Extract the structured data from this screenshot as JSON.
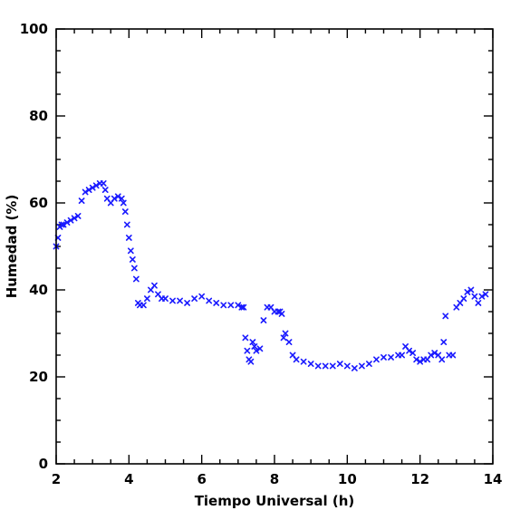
{
  "chart_data": {
    "type": "scatter",
    "title": "",
    "xlabel": "Tiempo Universal (h)",
    "ylabel": "Humedad (%)",
    "xlim": [
      2,
      14
    ],
    "ylim": [
      0,
      100
    ],
    "xticks": [
      2,
      4,
      6,
      8,
      10,
      12,
      14
    ],
    "yticks": [
      0,
      20,
      40,
      60,
      80,
      100
    ],
    "xtick_labels": [
      "2",
      "4",
      "6",
      "8",
      "10",
      "12",
      "14"
    ],
    "ytick_labels": [
      "0",
      "20",
      "40",
      "60",
      "80",
      "100"
    ],
    "minor_x_step": 0.5,
    "minor_y_step": 5,
    "grid": false,
    "marker": "x",
    "color": "#1a1aff",
    "series": [
      {
        "x": [
          2.0,
          2.05,
          2.1,
          2.15,
          2.2,
          2.3,
          2.4,
          2.5,
          2.6,
          2.7,
          2.8,
          2.9,
          3.0,
          3.1,
          3.2,
          3.3,
          3.35,
          3.4,
          3.5,
          3.6,
          3.7,
          3.8,
          3.85,
          3.9,
          3.95,
          4.0,
          4.05,
          4.1,
          4.15,
          4.2,
          4.25,
          4.3,
          4.4,
          4.5,
          4.6,
          4.7,
          4.8,
          4.9,
          5.0,
          5.2,
          5.4,
          5.6,
          5.8,
          6.0,
          6.2,
          6.4,
          6.6,
          6.8,
          7.0,
          7.1,
          7.15,
          7.2,
          7.25,
          7.3,
          7.35,
          7.4,
          7.45,
          7.5,
          7.6,
          7.7,
          7.8,
          7.9,
          8.0,
          8.1,
          8.15,
          8.2,
          8.25,
          8.3,
          8.4,
          8.5,
          8.6,
          8.8,
          9.0,
          9.2,
          9.4,
          9.6,
          9.8,
          10.0,
          10.2,
          10.4,
          10.6,
          10.8,
          11.0,
          11.2,
          11.4,
          11.5,
          11.6,
          11.7,
          11.8,
          11.9,
          12.0,
          12.1,
          12.2,
          12.3,
          12.4,
          12.5,
          12.6,
          12.65,
          12.7,
          12.8,
          12.9,
          13.0,
          13.1,
          13.2,
          13.3,
          13.4,
          13.5,
          13.6,
          13.7,
          13.8
        ],
        "y": [
          50,
          52,
          54.5,
          55,
          55,
          55.5,
          56,
          56.5,
          57,
          60.5,
          62.5,
          63,
          63.5,
          64,
          64.5,
          64.5,
          63,
          61,
          60,
          61,
          61.5,
          61,
          60,
          58,
          55,
          52,
          49,
          47,
          45,
          42.5,
          37,
          36.5,
          36.5,
          38,
          40,
          41,
          39,
          38,
          38,
          37.5,
          37.5,
          37,
          38,
          38.5,
          37.5,
          37,
          36.5,
          36.5,
          36.5,
          36,
          36,
          29,
          26,
          24,
          23.5,
          28,
          27,
          26,
          26.5,
          33,
          36,
          36,
          35,
          35,
          35,
          34.5,
          29,
          30,
          28,
          25,
          24,
          23.5,
          23,
          22.5,
          22.5,
          22.5,
          23,
          22.5,
          22,
          22.5,
          23,
          24,
          24.5,
          24.5,
          25,
          25,
          27,
          26,
          25.5,
          24,
          23.5,
          24,
          24,
          25,
          25.5,
          25,
          24,
          28,
          34,
          25,
          25,
          36,
          37,
          38,
          39.5,
          40,
          38.5,
          37,
          38.5,
          39
        ]
      }
    ]
  }
}
